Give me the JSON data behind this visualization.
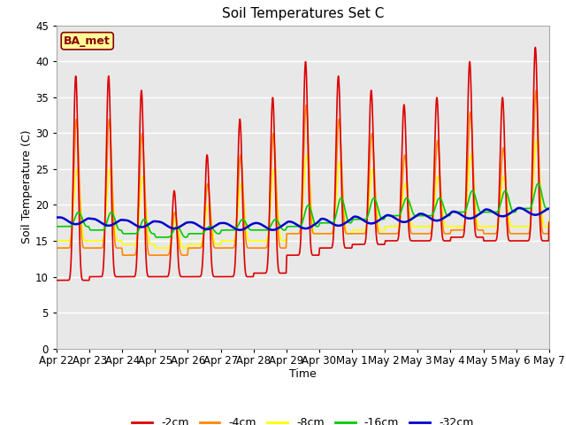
{
  "title": "Soil Temperatures Set C",
  "xlabel": "Time",
  "ylabel": "Soil Temperature (C)",
  "annotation": "BA_met",
  "ylim": [
    0,
    45
  ],
  "background_color": "#e8e8e8",
  "plot_bg_color": "#e8e8e8",
  "series": {
    "-2cm": {
      "color": "#dd0000",
      "linewidth": 1.2
    },
    "-4cm": {
      "color": "#ff8800",
      "linewidth": 1.2
    },
    "-8cm": {
      "color": "#ffff00",
      "linewidth": 1.2
    },
    "-16cm": {
      "color": "#00cc00",
      "linewidth": 1.2
    },
    "-32cm": {
      "color": "#0000cc",
      "linewidth": 1.8
    }
  },
  "tick_labels": [
    "Apr 22",
    "Apr 23",
    "Apr 24",
    "Apr 25",
    "Apr 26",
    "Apr 27",
    "Apr 28",
    "Apr 29",
    "Apr 30",
    "May 1",
    "May 2 ",
    "May 3 ",
    "May 4 ",
    "May 5 ",
    "May 6 ",
    "May 7"
  ],
  "tick_positions": [
    0,
    24,
    48,
    72,
    96,
    120,
    144,
    168,
    192,
    216,
    240,
    264,
    288,
    312,
    336,
    360
  ],
  "day_peaks_2cm": [
    38,
    38,
    36,
    22,
    27,
    32,
    35,
    40,
    38,
    36,
    34,
    35,
    40,
    35,
    42,
    19
  ],
  "day_peaks_4cm": [
    32,
    32,
    30,
    19,
    23,
    27,
    30,
    34,
    32,
    30,
    27,
    29,
    33,
    28,
    36,
    19
  ],
  "day_peaks_8cm": [
    25,
    25,
    24,
    18,
    20,
    23,
    25,
    27,
    26,
    25,
    23,
    24,
    27,
    24,
    29,
    19
  ],
  "day_peaks_16cm": [
    19,
    19,
    18,
    17,
    17,
    18,
    18,
    20,
    21,
    21,
    21,
    21,
    22,
    22,
    23,
    20
  ],
  "night_min_2cm": [
    9.5,
    10,
    10,
    10,
    10,
    10,
    10.5,
    13,
    14,
    14.5,
    15,
    15,
    15.5,
    15,
    15,
    19
  ],
  "night_min_4cm": [
    14,
    14,
    13,
    13,
    14,
    14,
    14,
    16,
    16,
    16,
    16,
    16,
    16.5,
    16,
    16,
    19
  ],
  "night_min_8cm": [
    15,
    15,
    14.5,
    14,
    14.5,
    15,
    15,
    16,
    16,
    16.5,
    17,
    17,
    17,
    17,
    17,
    19.5
  ],
  "night_min_16cm": [
    17,
    16.5,
    16,
    15.5,
    16,
    16.5,
    16.5,
    17,
    17.5,
    18,
    18.5,
    18.5,
    19,
    19,
    19.5,
    19.5
  ],
  "night_min_32cm": [
    17.8,
    17.6,
    17.4,
    17.2,
    17.1,
    17.0,
    17.0,
    17.2,
    17.6,
    17.9,
    18.1,
    18.3,
    18.6,
    18.9,
    19.1,
    19.2
  ]
}
